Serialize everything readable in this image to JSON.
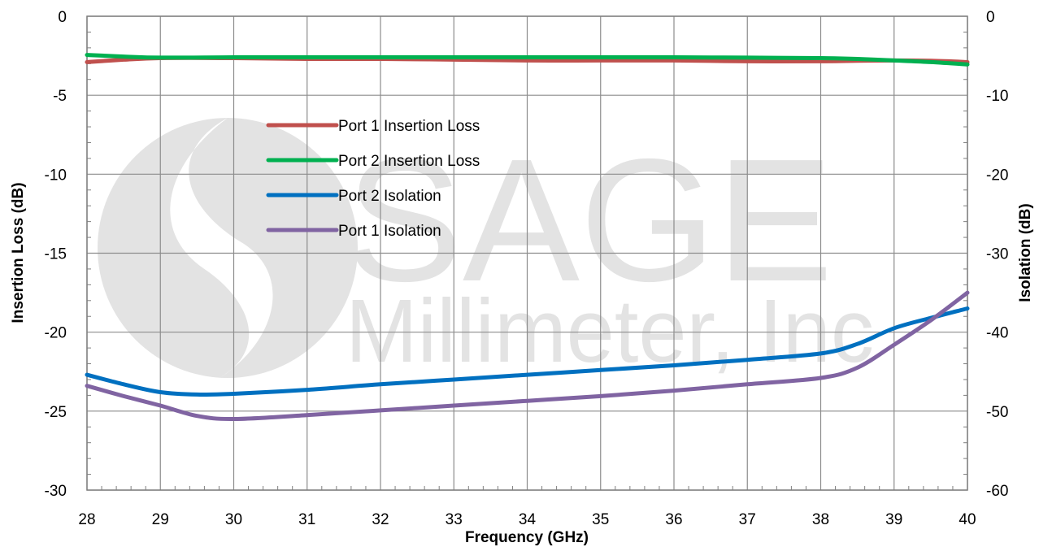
{
  "chart_data": {
    "type": "line",
    "xlabel": "Frequency (GHz)",
    "ylabel": "Insertion Loss (dB)",
    "y2label": "Isolation (dB)",
    "xlim": [
      28,
      40
    ],
    "ylim": [
      -30,
      0
    ],
    "y2lim": [
      -60,
      0
    ],
    "x_ticks": [
      28,
      29,
      30,
      31,
      32,
      33,
      34,
      35,
      36,
      37,
      38,
      39,
      40
    ],
    "y_ticks": [
      0,
      -5,
      -10,
      -15,
      -20,
      -25,
      -30
    ],
    "y2_ticks": [
      0,
      -10,
      -20,
      -30,
      -40,
      -50,
      -60
    ],
    "grid": true,
    "legend_position": "center-left",
    "watermark": {
      "line1": "SAGE",
      "line2": "Millimeter, Inc"
    },
    "series": [
      {
        "name": "Port 1 Insertion Loss",
        "axis": "left",
        "color": "#c0504d",
        "points": [
          [
            28,
            -2.9
          ],
          [
            28.5,
            -2.75
          ],
          [
            29,
            -2.65
          ],
          [
            30,
            -2.65
          ],
          [
            31,
            -2.7
          ],
          [
            32,
            -2.7
          ],
          [
            33,
            -2.75
          ],
          [
            34,
            -2.8
          ],
          [
            35,
            -2.8
          ],
          [
            36,
            -2.8
          ],
          [
            37,
            -2.85
          ],
          [
            38,
            -2.85
          ],
          [
            38.5,
            -2.82
          ],
          [
            39,
            -2.8
          ],
          [
            39.5,
            -2.82
          ],
          [
            40,
            -2.9
          ]
        ]
      },
      {
        "name": "Port 2 Insertion Loss",
        "axis": "left",
        "color": "#00b050",
        "points": [
          [
            28,
            -2.45
          ],
          [
            28.5,
            -2.55
          ],
          [
            29,
            -2.62
          ],
          [
            30,
            -2.6
          ],
          [
            31,
            -2.6
          ],
          [
            32,
            -2.6
          ],
          [
            33,
            -2.6
          ],
          [
            34,
            -2.6
          ],
          [
            35,
            -2.6
          ],
          [
            36,
            -2.6
          ],
          [
            37,
            -2.62
          ],
          [
            38,
            -2.65
          ],
          [
            38.5,
            -2.7
          ],
          [
            39,
            -2.8
          ],
          [
            39.5,
            -2.9
          ],
          [
            40,
            -3.05
          ]
        ]
      },
      {
        "name": "Port 2 Isolation",
        "axis": "right",
        "color": "#0070c0",
        "points": [
          [
            28,
            -45.4
          ],
          [
            28.5,
            -46.6
          ],
          [
            29,
            -47.6
          ],
          [
            29.5,
            -47.9
          ],
          [
            30,
            -47.8
          ],
          [
            31,
            -47.3
          ],
          [
            32,
            -46.6
          ],
          [
            33,
            -46.0
          ],
          [
            34,
            -45.4
          ],
          [
            35,
            -44.8
          ],
          [
            36,
            -44.2
          ],
          [
            37,
            -43.5
          ],
          [
            38,
            -42.7
          ],
          [
            38.5,
            -41.5
          ],
          [
            39,
            -39.5
          ],
          [
            39.5,
            -38.2
          ],
          [
            40,
            -37.0
          ]
        ]
      },
      {
        "name": "Port 1 Isolation",
        "axis": "right",
        "color": "#8064a2",
        "points": [
          [
            28,
            -46.8
          ],
          [
            28.5,
            -48.1
          ],
          [
            29,
            -49.3
          ],
          [
            29.5,
            -50.6
          ],
          [
            30,
            -51.0
          ],
          [
            31,
            -50.5
          ],
          [
            32,
            -49.9
          ],
          [
            33,
            -49.3
          ],
          [
            34,
            -48.7
          ],
          [
            35,
            -48.1
          ],
          [
            36,
            -47.4
          ],
          [
            37,
            -46.6
          ],
          [
            38,
            -45.8
          ],
          [
            38.5,
            -44.5
          ],
          [
            39,
            -41.6
          ],
          [
            39.5,
            -38.5
          ],
          [
            40,
            -35.0
          ]
        ]
      }
    ]
  }
}
